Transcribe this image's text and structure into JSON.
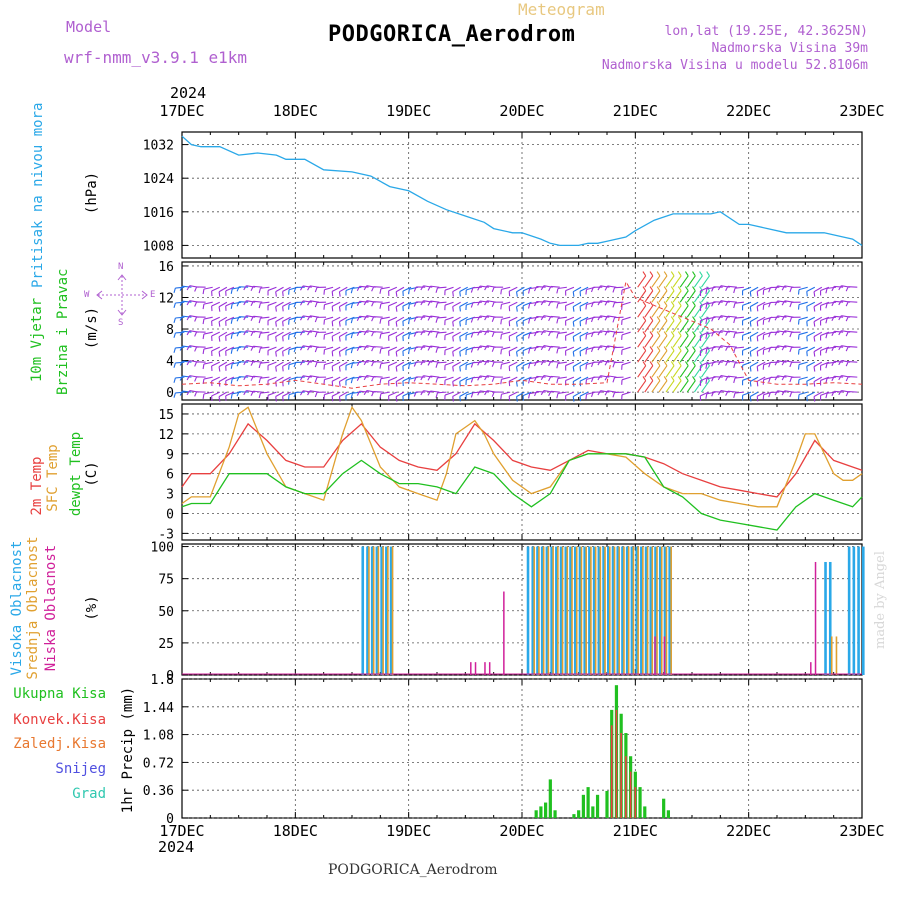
{
  "header": {
    "model_label": "Model",
    "model_name": "wrf-nmm_v3.9.1 e1km",
    "chart_type": "Meteogram",
    "station": "PODGORICA_Aerodrom",
    "lonlat": "lon,lat (19.25E, 42.3625N)",
    "elev": "Nadmorska Visina 39m",
    "elev_model": "Nadmorska Visina u modelu 52.8106m",
    "footer": "PODGORICA_Aerodrom",
    "credit": "made by Angel"
  },
  "colors": {
    "pressure": "#2aa8e8",
    "t2m": "#e84040",
    "tsfc": "#e0a030",
    "dew": "#20c020",
    "high_cloud": "#2aa8e8",
    "mid_cloud": "#e0a030",
    "low_cloud": "#d0209a",
    "precip_total": "#20c020",
    "precip_conv": "#e84040",
    "wind_purple": "#9a30d8",
    "wind_blue": "#2070e8"
  },
  "chart_data": {
    "type": "meteogram",
    "x_axis": {
      "year": "2024",
      "tick_labels": [
        "17DEC",
        "18DEC",
        "19DEC",
        "20DEC",
        "21DEC",
        "22DEC",
        "23DEC"
      ],
      "range_hours": [
        0,
        144
      ]
    },
    "panels": [
      {
        "id": "pressure",
        "type": "line",
        "labels": [
          "Pritisak na nivou mora"
        ],
        "unit": "(hPa)",
        "ylim": [
          1005,
          1035
        ],
        "yticks": [
          "1008",
          "1016",
          "1024",
          "1032"
        ],
        "series": [
          {
            "name": "Pritisak na nivou mora",
            "x": [
              0,
              2,
              4,
              8,
              12,
              16,
              20,
              22,
              26,
              30,
              36,
              40,
              44,
              48,
              52,
              56,
              60,
              64,
              66,
              70,
              72,
              76,
              78,
              80,
              82,
              84,
              86,
              88,
              90,
              92,
              94,
              96,
              100,
              104,
              108,
              112,
              114,
              118,
              120,
              124,
              128,
              132,
              136,
              140,
              142,
              144
            ],
            "y": [
              1034,
              1032,
              1031.5,
              1031.5,
              1029.5,
              1030,
              1029.5,
              1028.5,
              1028.5,
              1026,
              1025.5,
              1024.5,
              1022,
              1021,
              1018.5,
              1016.5,
              1015,
              1013.5,
              1012,
              1011,
              1011,
              1009.5,
              1008.5,
              1008,
              1008,
              1008,
              1008.5,
              1008.5,
              1009,
              1009.5,
              1010,
              1011.5,
              1014,
              1015.5,
              1015.5,
              1015.5,
              1016,
              1013,
              1013,
              1012,
              1011,
              1011,
              1011,
              1010,
              1009.5,
              1008
            ]
          }
        ]
      },
      {
        "id": "wind",
        "type": "barbs",
        "labels": [
          "10m Vjetar",
          "Brzina i Pravac"
        ],
        "unit": "(m/s)",
        "compass_labels": [
          "N",
          "W",
          "E",
          "S"
        ],
        "ylim": [
          -1,
          16.5
        ],
        "yticks": [
          "0",
          "4",
          "8",
          "12",
          "16"
        ],
        "series": [
          {
            "name": "wind speed",
            "x": [
              0,
              6,
              12,
              18,
              24,
              30,
              36,
              42,
              48,
              54,
              60,
              66,
              72,
              78,
              84,
              90,
              94,
              96,
              100,
              104,
              108,
              112,
              116,
              120,
              126,
              132,
              138,
              144
            ],
            "y": [
              1,
              1.2,
              0.8,
              1,
              1.5,
              1,
              0.5,
              1,
              1.2,
              1,
              0.8,
              1,
              1.5,
              1,
              1,
              1.2,
              14,
              12,
              11,
              10,
              9,
              8,
              6,
              1.5,
              1,
              1,
              1.2,
              1
            ]
          }
        ]
      },
      {
        "id": "temperature",
        "type": "line",
        "labels": [
          "2m Temp",
          "SFC Temp",
          "dewpt Temp"
        ],
        "unit": "(C)",
        "ylim": [
          -4,
          16.5
        ],
        "yticks": [
          "-3",
          "0",
          "3",
          "6",
          "9",
          "12",
          "15"
        ],
        "series": [
          {
            "name": "2m Temp",
            "x": [
              0,
              2,
              6,
              10,
              14,
              18,
              22,
              26,
              30,
              34,
              38,
              42,
              46,
              50,
              54,
              58,
              62,
              66,
              70,
              74,
              78,
              82,
              86,
              90,
              94,
              98,
              102,
              106,
              110,
              114,
              118,
              122,
              126,
              130,
              134,
              138,
              142,
              144
            ],
            "y": [
              4,
              6,
              6,
              9,
              13.5,
              11,
              8,
              7,
              7,
              11,
              13.5,
              10,
              8,
              7,
              6.5,
              9,
              13.5,
              11,
              8,
              7,
              6.5,
              8,
              9.5,
              9,
              9,
              8.5,
              7.5,
              6,
              5,
              4,
              3.5,
              3,
              2.5,
              6,
              11,
              8,
              7,
              6.5
            ]
          },
          {
            "name": "SFC Temp",
            "x": [
              0,
              2,
              6,
              10,
              12,
              14,
              18,
              22,
              26,
              30,
              34,
              36,
              38,
              42,
              46,
              50,
              54,
              56,
              58,
              62,
              64,
              66,
              70,
              74,
              78,
              82,
              86,
              90,
              94,
              98,
              102,
              106,
              110,
              114,
              118,
              122,
              126,
              130,
              132,
              134,
              138,
              140,
              142,
              144
            ],
            "y": [
              1.5,
              2.5,
              2.5,
              10,
              15,
              16,
              9,
              4,
              3,
              2,
              12,
              16,
              14,
              7,
              4,
              3,
              2,
              6,
              12,
              14,
              12,
              9,
              5,
              3,
              4,
              8,
              9,
              9,
              8.5,
              6,
              4,
              3,
              3,
              2,
              1.5,
              1,
              1,
              8,
              12,
              12,
              6,
              5,
              5,
              6
            ]
          },
          {
            "name": "dewpt Temp",
            "x": [
              0,
              2,
              6,
              10,
              14,
              18,
              22,
              26,
              30,
              34,
              38,
              42,
              46,
              50,
              54,
              58,
              62,
              66,
              70,
              74,
              78,
              82,
              86,
              90,
              94,
              98,
              102,
              106,
              110,
              114,
              118,
              122,
              126,
              130,
              134,
              138,
              142,
              144
            ],
            "y": [
              1,
              1.5,
              1.5,
              6,
              6,
              6,
              4,
              3,
              3,
              6,
              8,
              6,
              4.5,
              4.5,
              4,
              3,
              7,
              6,
              3,
              1,
              3,
              8,
              9,
              9,
              9,
              8.5,
              4,
              2.5,
              0,
              -1,
              -1.5,
              -2,
              -2.5,
              1,
              3,
              2,
              1,
              2.5
            ]
          }
        ]
      },
      {
        "id": "cloud",
        "type": "bar",
        "labels": [
          "Visoka Oblacnost",
          "Srednja Oblacnost",
          "Niska Oblacnost"
        ],
        "unit": "(%)",
        "ylim": [
          0,
          102
        ],
        "yticks": [
          "0",
          "25",
          "50",
          "75",
          "100"
        ],
        "series": [
          {
            "name": "Visoka Oblacnost",
            "segments": [
              [
                38,
                44,
                100
              ],
              [
                73,
                103,
                100
              ],
              [
                136,
                137,
                88
              ],
              [
                141,
                144,
                100
              ]
            ]
          },
          {
            "name": "Srednja Oblacnost",
            "segments": [
              [
                39,
                44,
                100
              ],
              [
                74,
                103,
                100
              ],
              [
                137,
                138,
                30
              ]
            ]
          },
          {
            "name": "Niska Oblacnost",
            "x": [
              61,
              62,
              64,
              65,
              68,
              100,
              102,
              133,
              134
            ],
            "y": [
              10,
              10,
              10,
              10,
              65,
              30,
              30,
              10,
              88
            ]
          }
        ]
      },
      {
        "id": "precip",
        "type": "bar",
        "labels": [
          "Ukupna Kisa",
          "Konvek.Kisa",
          "Zaledj.Kisa",
          "Snijeg",
          "Grad"
        ],
        "unit": "1hr Precip (mm)",
        "ylim": [
          0,
          1.8
        ],
        "yticks": [
          "0",
          "0.36",
          "0.72",
          "1.08",
          "1.44",
          "1.8"
        ],
        "series": [
          {
            "name": "Ukupna Kisa",
            "x": [
              75,
              76,
              77,
              78,
              79,
              83,
              84,
              85,
              86,
              87,
              88,
              90,
              91,
              92,
              93,
              94,
              95,
              96,
              97,
              98,
              102,
              103
            ],
            "y": [
              0.1,
              0.15,
              0.2,
              0.5,
              0.1,
              0.05,
              0.1,
              0.3,
              0.4,
              0.15,
              0.3,
              0.35,
              1.4,
              1.72,
              1.35,
              1.1,
              0.8,
              0.6,
              0.4,
              0.15,
              0.25,
              0.1
            ]
          },
          {
            "name": "Konvek.Kisa",
            "x": [
              91,
              92,
              93,
              94,
              95,
              96
            ],
            "y": [
              1.2,
              1.4,
              1.1,
              0.8,
              0.6,
              0.4
            ]
          }
        ]
      }
    ]
  }
}
